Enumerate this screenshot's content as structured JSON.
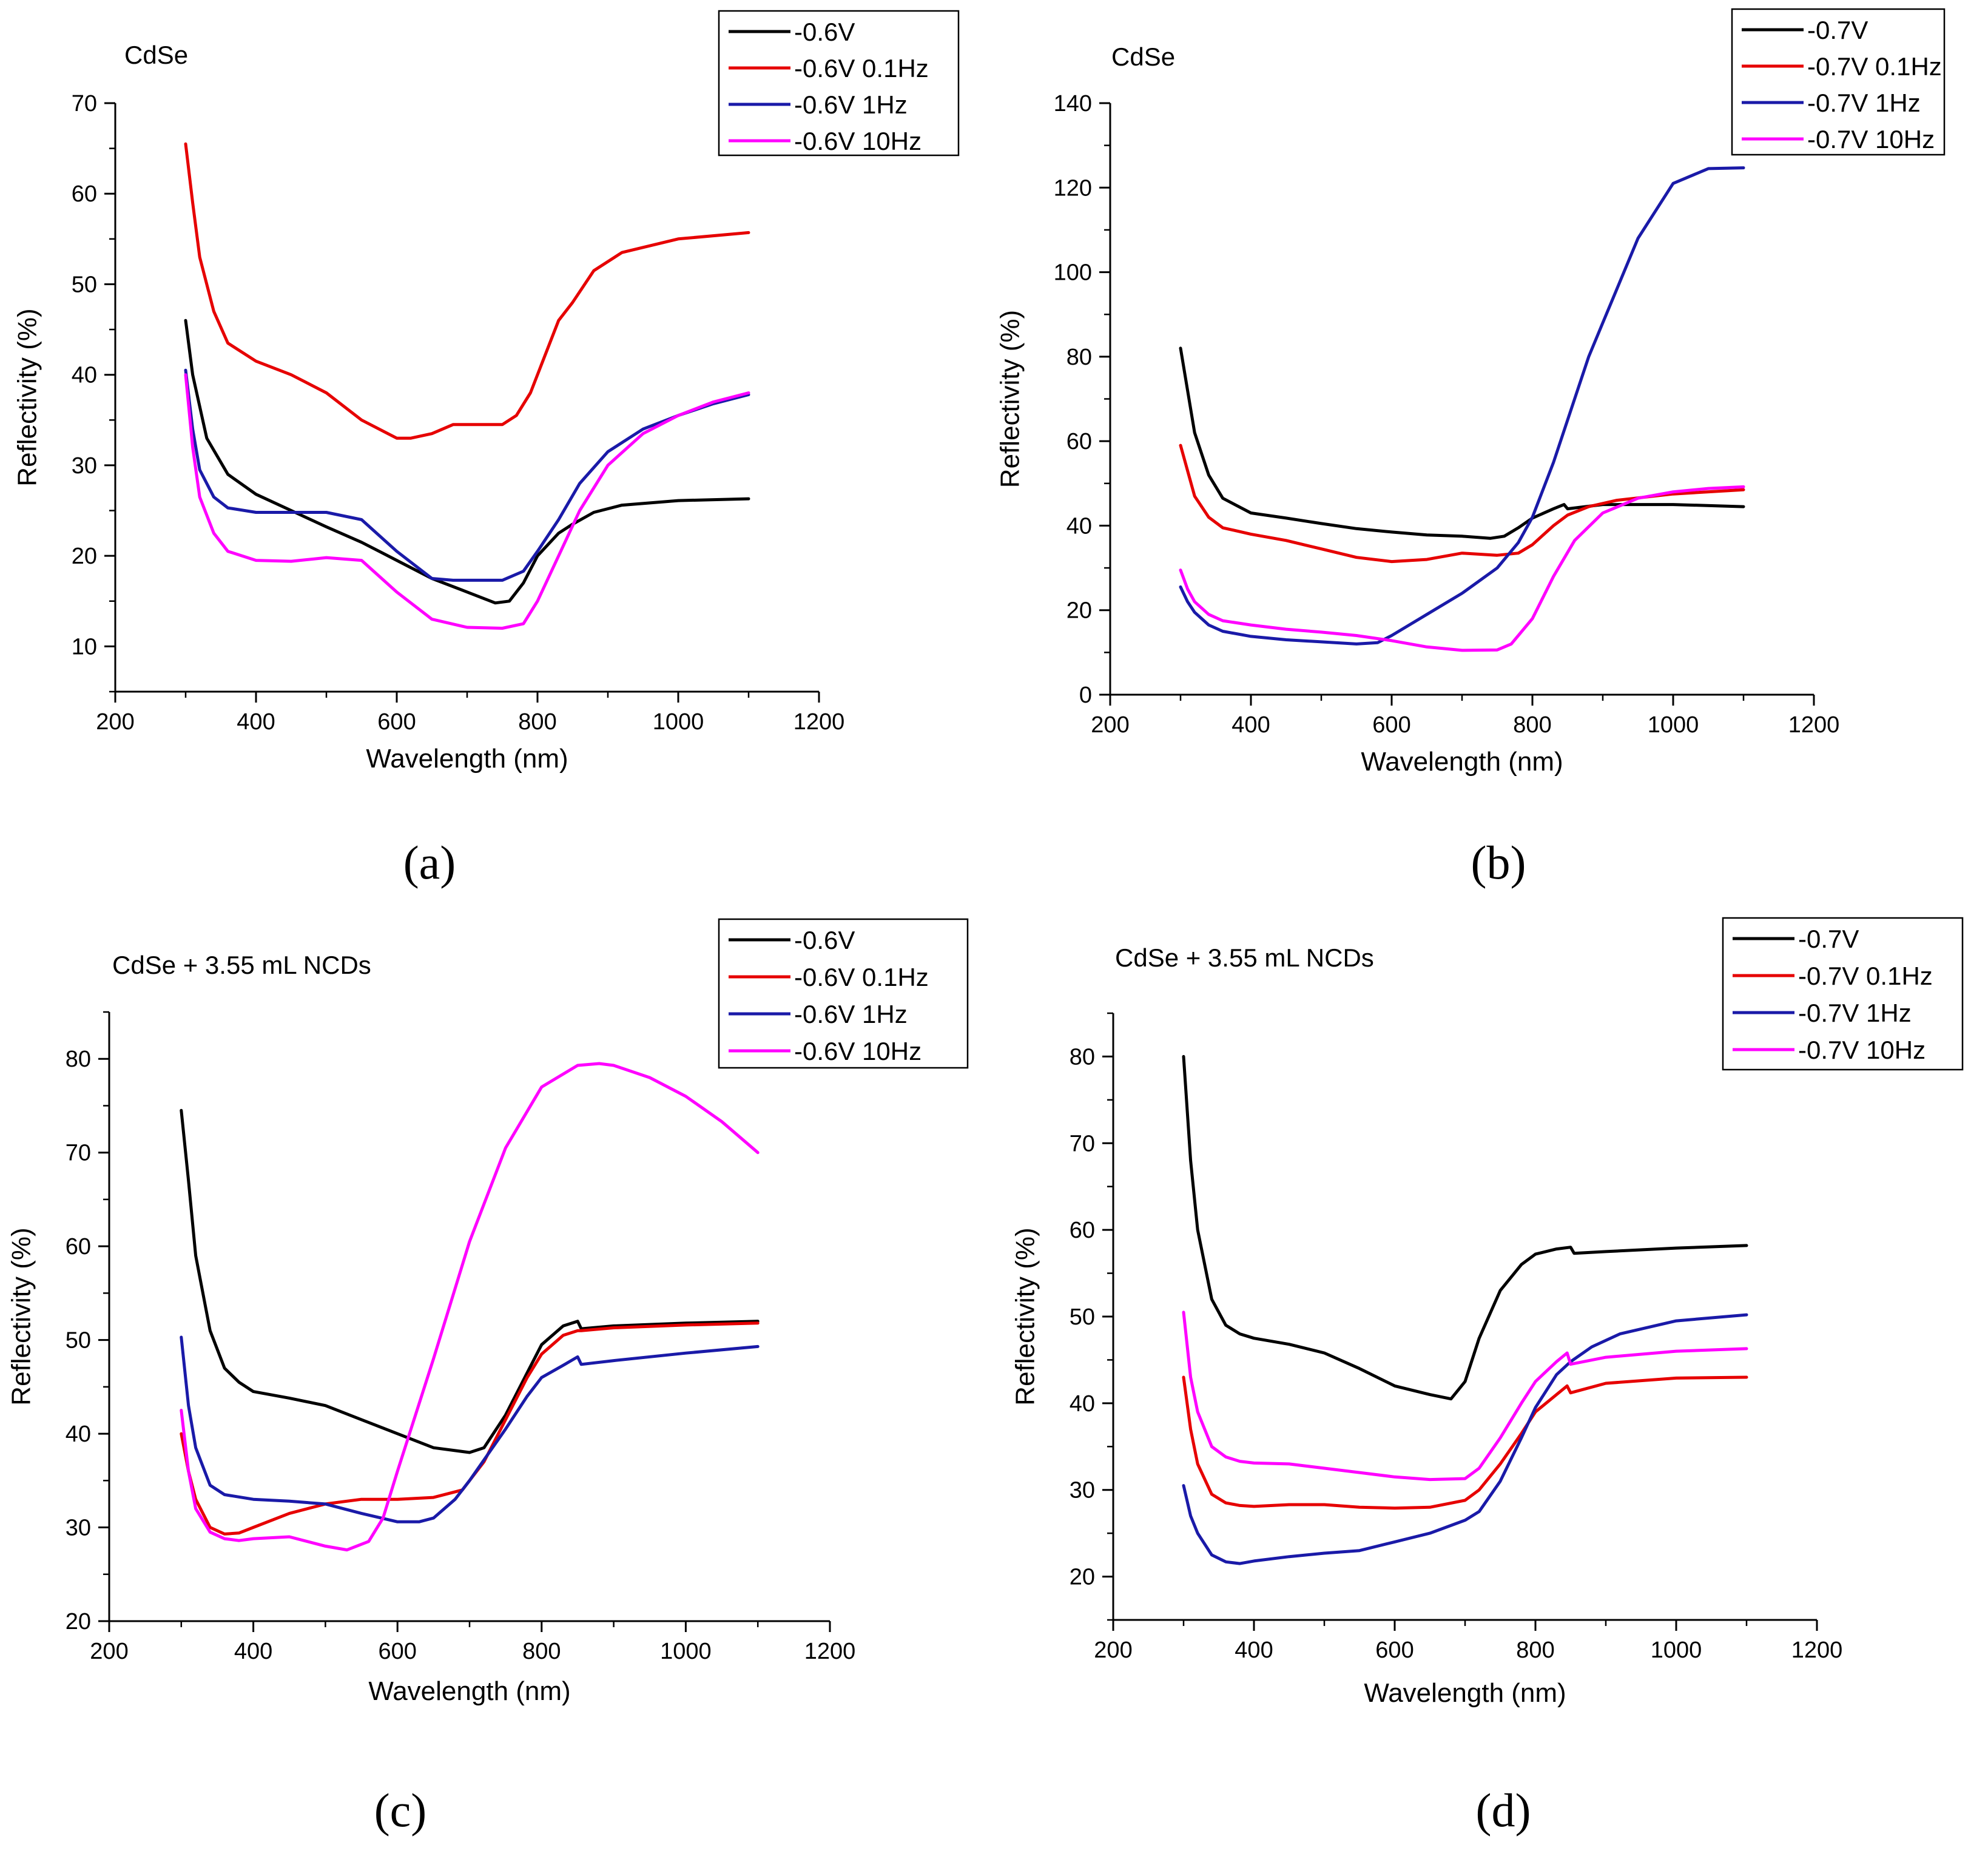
{
  "chart_data": [
    {
      "type": "line",
      "panel_label": "(a)",
      "annotation": "CdSe",
      "xlabel": "Wavelength (nm)",
      "ylabel": "Reflectivity (%)",
      "xlim": [
        200,
        1200
      ],
      "ylim": [
        5,
        70
      ],
      "xticks": [
        "200",
        "400",
        "600",
        "800",
        "1000",
        "1200"
      ],
      "yticks": [
        "10",
        "20",
        "30",
        "40",
        "50",
        "60",
        "70"
      ],
      "ytick_values": [
        10,
        20,
        30,
        40,
        50,
        60,
        70
      ],
      "legend_position": "top-right",
      "series": [
        {
          "name": "-0.6V",
          "color": "#000000",
          "x": [
            300,
            310,
            330,
            360,
            400,
            450,
            500,
            550,
            600,
            650,
            700,
            740,
            760,
            780,
            800,
            830,
            850,
            880,
            920,
            1000,
            1100
          ],
          "y": [
            46,
            40,
            33,
            29,
            26.8,
            25,
            23.2,
            21.5,
            19.5,
            17.5,
            16,
            14.8,
            15,
            17,
            20,
            22.5,
            23.5,
            24.8,
            25.6,
            26.1,
            26.3
          ]
        },
        {
          "name": "-0.6V 0.1Hz",
          "color": "#e60000",
          "x": [
            300,
            310,
            320,
            340,
            360,
            400,
            450,
            500,
            550,
            600,
            620,
            650,
            680,
            700,
            750,
            770,
            790,
            810,
            830,
            850,
            880,
            920,
            1000,
            1100
          ],
          "y": [
            65.5,
            59,
            53,
            47,
            43.5,
            41.5,
            40,
            38,
            35,
            33,
            33,
            33.5,
            34.5,
            34.5,
            34.5,
            35.5,
            38,
            42,
            46,
            48,
            51.5,
            53.5,
            55,
            55.7
          ]
        },
        {
          "name": "-0.6V 1Hz",
          "color": "#1a1aa8",
          "x": [
            300,
            310,
            320,
            340,
            360,
            400,
            450,
            500,
            550,
            600,
            650,
            680,
            700,
            750,
            780,
            800,
            830,
            860,
            900,
            950,
            1000,
            1050,
            1100
          ],
          "y": [
            40.5,
            34,
            29.5,
            26.5,
            25.3,
            24.8,
            24.8,
            24.8,
            24,
            20.5,
            17.5,
            17.3,
            17.3,
            17.3,
            18.3,
            20.5,
            24,
            28,
            31.5,
            34,
            35.5,
            36.8,
            37.8
          ]
        },
        {
          "name": "-0.6V 10Hz",
          "color": "#ff00ff",
          "x": [
            300,
            310,
            320,
            340,
            360,
            400,
            450,
            500,
            550,
            600,
            650,
            700,
            750,
            780,
            800,
            830,
            860,
            900,
            950,
            1000,
            1050,
            1100
          ],
          "y": [
            40,
            32,
            26.5,
            22.5,
            20.5,
            19.5,
            19.4,
            19.8,
            19.5,
            16,
            13,
            12.1,
            12,
            12.5,
            15,
            20,
            25,
            30,
            33.5,
            35.5,
            37,
            38
          ]
        }
      ]
    },
    {
      "type": "line",
      "panel_label": "(b)",
      "annotation": "CdSe",
      "xlabel": "Wavelength (nm)",
      "ylabel": "Reflectivity (%)",
      "xlim": [
        200,
        1200
      ],
      "ylim": [
        0,
        140
      ],
      "xticks": [
        "200",
        "400",
        "600",
        "800",
        "1000",
        "1200"
      ],
      "yticks": [
        "0",
        "20",
        "40",
        "60",
        "80",
        "100",
        "120",
        "140"
      ],
      "ytick_values": [
        0,
        20,
        40,
        60,
        80,
        100,
        120,
        140
      ],
      "legend_position": "top-right",
      "series": [
        {
          "name": "-0.7V",
          "color": "#000000",
          "x": [
            300,
            310,
            320,
            340,
            360,
            400,
            450,
            500,
            550,
            600,
            650,
            700,
            740,
            760,
            780,
            800,
            830,
            845,
            850,
            900,
            1000,
            1100
          ],
          "y": [
            82,
            72,
            62,
            52,
            46.5,
            43,
            41.8,
            40.5,
            39.3,
            38.5,
            37.8,
            37.5,
            37,
            37.5,
            39.5,
            41.8,
            44,
            45,
            44,
            45,
            45,
            44.5
          ]
        },
        {
          "name": "-0.7V 0.1Hz",
          "color": "#e60000",
          "x": [
            300,
            310,
            320,
            340,
            360,
            400,
            450,
            500,
            550,
            600,
            650,
            700,
            750,
            780,
            800,
            830,
            850,
            880,
            920,
            1000,
            1100
          ],
          "y": [
            59,
            53,
            47,
            42,
            39.5,
            38,
            36.5,
            34.5,
            32.5,
            31.5,
            32,
            33.5,
            33,
            33.5,
            35.5,
            40,
            42.5,
            44.5,
            46,
            47.5,
            48.5
          ]
        },
        {
          "name": "-0.7V 1Hz",
          "color": "#1a1aa8",
          "x": [
            300,
            310,
            320,
            340,
            360,
            400,
            450,
            500,
            550,
            580,
            600,
            650,
            700,
            750,
            780,
            800,
            830,
            850,
            880,
            900,
            950,
            1000,
            1050,
            1100
          ],
          "y": [
            25.5,
            22,
            19.5,
            16.5,
            15,
            13.8,
            13,
            12.5,
            12,
            12.3,
            14,
            19,
            24,
            30,
            36,
            42,
            55,
            65,
            80,
            88,
            108,
            121,
            124.5,
            124.7
          ]
        },
        {
          "name": "-0.7V 10Hz",
          "color": "#ff00ff",
          "x": [
            300,
            310,
            320,
            340,
            360,
            400,
            450,
            500,
            550,
            600,
            650,
            700,
            750,
            770,
            800,
            830,
            860,
            900,
            950,
            1000,
            1050,
            1100
          ],
          "y": [
            29.5,
            25,
            22,
            19,
            17.5,
            16.5,
            15.5,
            14.8,
            14,
            12.8,
            11.3,
            10.5,
            10.6,
            12,
            18,
            28,
            36.5,
            43,
            46.5,
            48,
            48.8,
            49.2
          ]
        }
      ]
    },
    {
      "type": "line",
      "panel_label": "(c)",
      "annotation": "CdSe + 3.55 mL NCDs",
      "xlabel": "Wavelength (nm)",
      "ylabel": "Reflectivity (%)",
      "xlim": [
        200,
        1200
      ],
      "ylim": [
        20,
        85
      ],
      "xticks": [
        "200",
        "400",
        "600",
        "800",
        "1000",
        "1200"
      ],
      "yticks": [
        "20",
        "30",
        "40",
        "50",
        "60",
        "70",
        "80"
      ],
      "ytick_values": [
        20,
        30,
        40,
        50,
        60,
        70,
        80
      ],
      "legend_position": "top-right",
      "series": [
        {
          "name": "-0.6V",
          "color": "#000000",
          "x": [
            300,
            310,
            320,
            340,
            360,
            380,
            400,
            450,
            500,
            550,
            600,
            650,
            700,
            720,
            750,
            780,
            800,
            830,
            850,
            855,
            900,
            1000,
            1100
          ],
          "y": [
            74.5,
            67,
            59,
            51,
            47,
            45.5,
            44.5,
            43.8,
            43,
            41.5,
            40,
            38.5,
            38,
            38.5,
            42,
            46.5,
            49.5,
            51.5,
            52,
            51.2,
            51.5,
            51.8,
            52
          ]
        },
        {
          "name": "-0.6V 0.1Hz",
          "color": "#e60000",
          "x": [
            300,
            310,
            320,
            340,
            360,
            380,
            400,
            450,
            500,
            550,
            600,
            650,
            690,
            720,
            750,
            780,
            800,
            830,
            850,
            855,
            900,
            1000,
            1100
          ],
          "y": [
            40,
            36,
            33,
            30,
            29.3,
            29.4,
            30,
            31.5,
            32.5,
            33,
            33,
            33.2,
            34,
            37,
            41.5,
            46,
            48.5,
            50.5,
            51,
            51,
            51.3,
            51.6,
            51.8
          ]
        },
        {
          "name": "-0.6V 1Hz",
          "color": "#1a1aa8",
          "x": [
            300,
            310,
            320,
            340,
            360,
            400,
            450,
            500,
            550,
            600,
            630,
            650,
            680,
            700,
            750,
            780,
            800,
            830,
            850,
            855,
            900,
            1000,
            1100
          ],
          "y": [
            50.3,
            43,
            38.5,
            34.5,
            33.5,
            33,
            32.8,
            32.5,
            31.5,
            30.6,
            30.6,
            31,
            33,
            35,
            40.5,
            44,
            46,
            47.3,
            48.2,
            47.4,
            47.8,
            48.6,
            49.3
          ]
        },
        {
          "name": "-0.6V 10Hz",
          "color": "#ff00ff",
          "x": [
            300,
            310,
            320,
            340,
            360,
            380,
            400,
            450,
            500,
            530,
            560,
            580,
            600,
            650,
            700,
            750,
            800,
            850,
            880,
            900,
            950,
            1000,
            1050,
            1100
          ],
          "y": [
            42.5,
            36,
            32,
            29.5,
            28.8,
            28.6,
            28.8,
            29,
            28,
            27.6,
            28.5,
            31,
            36,
            48,
            60.5,
            70.5,
            77,
            79.3,
            79.5,
            79.3,
            78,
            76,
            73.3,
            70
          ]
        }
      ]
    },
    {
      "type": "line",
      "panel_label": "(d)",
      "annotation": "CdSe + 3.55 mL NCDs",
      "xlabel": "Wavelength (nm)",
      "ylabel": "Reflectivity (%)",
      "xlim": [
        200,
        1200
      ],
      "ylim": [
        15,
        85
      ],
      "xticks": [
        "200",
        "400",
        "600",
        "800",
        "1000",
        "1200"
      ],
      "yticks": [
        "20",
        "30",
        "40",
        "50",
        "60",
        "70",
        "80"
      ],
      "ytick_values": [
        20,
        30,
        40,
        50,
        60,
        70,
        80
      ],
      "legend_position": "top-right",
      "series": [
        {
          "name": "-0.7V",
          "color": "#000000",
          "x": [
            300,
            310,
            320,
            340,
            360,
            380,
            400,
            450,
            500,
            550,
            600,
            650,
            680,
            700,
            720,
            750,
            780,
            800,
            830,
            850,
            855,
            900,
            1000,
            1100
          ],
          "y": [
            80,
            68,
            60,
            52,
            49,
            48,
            47.5,
            46.8,
            45.8,
            44,
            42,
            41,
            40.5,
            42.5,
            47.5,
            53,
            56,
            57.2,
            57.8,
            58,
            57.3,
            57.5,
            57.9,
            58.2
          ]
        },
        {
          "name": "-0.7V 0.1Hz",
          "color": "#e60000",
          "x": [
            300,
            310,
            320,
            340,
            360,
            380,
            400,
            450,
            500,
            550,
            600,
            650,
            700,
            720,
            750,
            780,
            800,
            830,
            845,
            850,
            900,
            1000,
            1100
          ],
          "y": [
            43,
            37,
            33,
            29.5,
            28.5,
            28.2,
            28.1,
            28.3,
            28.3,
            28,
            27.9,
            28,
            28.8,
            30,
            33,
            36.5,
            39,
            41,
            42,
            41.2,
            42.3,
            42.9,
            43
          ]
        },
        {
          "name": "-0.7V 1Hz",
          "color": "#1a1aa8",
          "x": [
            300,
            310,
            320,
            340,
            360,
            380,
            400,
            450,
            500,
            550,
            600,
            650,
            700,
            720,
            750,
            780,
            800,
            830,
            850,
            880,
            920,
            1000,
            1100
          ],
          "y": [
            30.5,
            27,
            25,
            22.5,
            21.7,
            21.5,
            21.8,
            22.3,
            22.7,
            23,
            24,
            25,
            26.5,
            27.5,
            31,
            36,
            39.5,
            43.3,
            44.8,
            46.5,
            48,
            49.5,
            50.2
          ]
        },
        {
          "name": "-0.7V 10Hz",
          "color": "#ff00ff",
          "x": [
            300,
            310,
            320,
            340,
            360,
            380,
            400,
            450,
            500,
            550,
            600,
            650,
            700,
            720,
            750,
            780,
            800,
            830,
            845,
            850,
            900,
            1000,
            1100
          ],
          "y": [
            50.5,
            43,
            39,
            35,
            33.8,
            33.3,
            33.1,
            33,
            32.5,
            32,
            31.5,
            31.2,
            31.3,
            32.5,
            36,
            40,
            42.5,
            44.8,
            45.8,
            44.5,
            45.3,
            46,
            46.3
          ]
        }
      ]
    }
  ]
}
